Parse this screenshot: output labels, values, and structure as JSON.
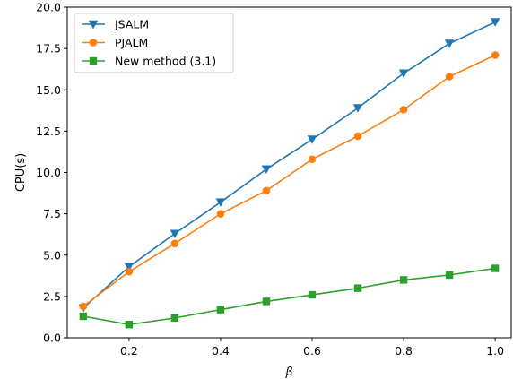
{
  "chart_data": {
    "type": "line",
    "xlabel": "β",
    "ylabel": "CPU(s)",
    "xlim": [
      0.065,
      1.035
    ],
    "ylim": [
      0.0,
      20.0
    ],
    "x_ticks": [
      0.2,
      0.4,
      0.6,
      0.8,
      1.0
    ],
    "x_tick_labels": [
      "0.2",
      "0.4",
      "0.6",
      "0.8",
      "1.0"
    ],
    "y_ticks": [
      0.0,
      2.5,
      5.0,
      7.5,
      10.0,
      12.5,
      15.0,
      17.5,
      20.0
    ],
    "y_tick_labels": [
      "0.0",
      "2.5",
      "5.0",
      "7.5",
      "10.0",
      "12.5",
      "15.0",
      "17.5",
      "20.0"
    ],
    "grid": false,
    "legend_position": "upper-left",
    "x": [
      0.1,
      0.2,
      0.3,
      0.4,
      0.5,
      0.6,
      0.7,
      0.8,
      0.9,
      1.0
    ],
    "series": [
      {
        "name": "JSALM",
        "color": "#1f77b4",
        "marker": "triangle-down",
        "values": [
          1.8,
          4.3,
          6.3,
          8.2,
          10.2,
          12.0,
          13.9,
          16.0,
          17.8,
          19.1
        ]
      },
      {
        "name": "PJALM",
        "color": "#ff7f0e",
        "marker": "circle",
        "values": [
          1.9,
          4.0,
          5.7,
          7.5,
          8.9,
          10.8,
          12.2,
          13.8,
          15.8,
          17.1
        ]
      },
      {
        "name": "New method (3.1)",
        "color": "#2ca02c",
        "marker": "square",
        "values": [
          1.3,
          0.8,
          1.2,
          1.7,
          2.2,
          2.6,
          3.0,
          3.5,
          3.8,
          4.2
        ]
      }
    ]
  }
}
